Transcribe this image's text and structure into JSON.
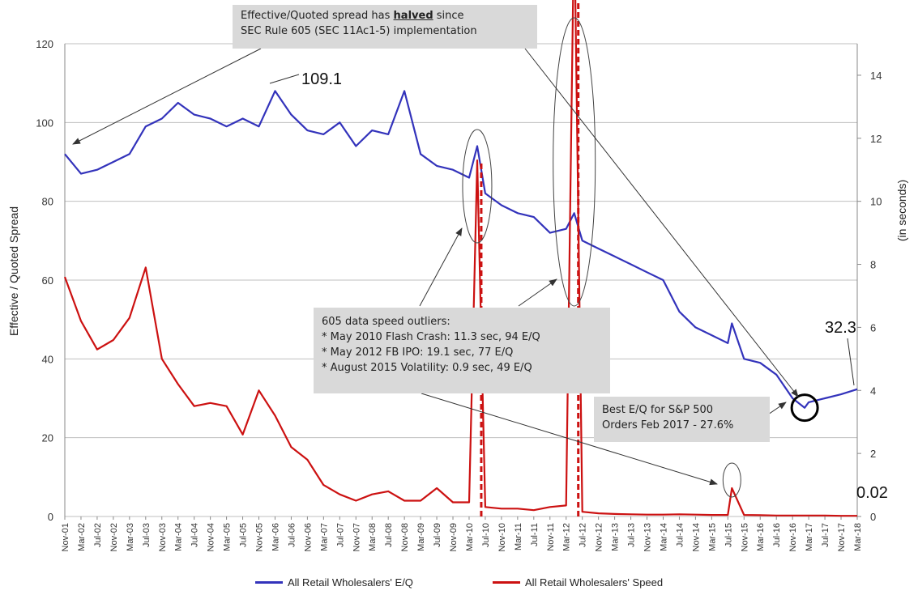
{
  "chart_data": {
    "type": "line",
    "ylabel": "Effective / Quoted Spread",
    "y2label": "(in seconds)",
    "ylim": [
      0,
      120
    ],
    "y2lim": [
      0,
      15
    ],
    "yticks": [
      0,
      20,
      40,
      60,
      80,
      100,
      120
    ],
    "y2ticks": [
      0,
      2,
      4,
      6,
      8,
      10,
      12,
      14
    ],
    "x_tick_labels": [
      "Nov-01",
      "Mar-02",
      "Jul-02",
      "Nov-02",
      "Mar-03",
      "Jul-03",
      "Nov-03",
      "Mar-04",
      "Jul-04",
      "Nov-04",
      "Mar-05",
      "Jul-05",
      "Nov-05",
      "Mar-06",
      "Jul-06",
      "Nov-06",
      "Mar-07",
      "Jul-07",
      "Nov-07",
      "Mar-08",
      "Jul-08",
      "Nov-08",
      "Mar-09",
      "Jul-09",
      "Nov-09",
      "Mar-10",
      "Jul-10",
      "Nov-10",
      "Mar-11",
      "Jul-11",
      "Nov-11",
      "Mar-12",
      "Jul-12",
      "Nov-12",
      "Mar-13",
      "Jul-13",
      "Nov-13",
      "Mar-14",
      "Jul-14",
      "Nov-14",
      "Mar-15",
      "Jul-15",
      "Nov-15",
      "Mar-16",
      "Jul-16",
      "Nov-16",
      "Mar-17",
      "Jul-17",
      "Nov-17",
      "Mar-18"
    ],
    "grid": true,
    "legend_position": "bottom",
    "series": [
      {
        "name": "All Retail Wholesalers' E/Q",
        "axis": "left",
        "color": "#3333bb",
        "x": [
          "Nov-01",
          "Mar-02",
          "Jul-02",
          "Nov-02",
          "Mar-03",
          "Jul-03",
          "Nov-03",
          "Mar-04",
          "Jul-04",
          "Nov-04",
          "Mar-05",
          "Jul-05",
          "Nov-05",
          "Mar-06",
          "Jul-06",
          "Nov-06",
          "Mar-07",
          "Jul-07",
          "Nov-07",
          "Mar-08",
          "Jul-08",
          "Nov-08",
          "Mar-09",
          "Jul-09",
          "Nov-09",
          "Mar-10",
          "May-10",
          "Jul-10",
          "Nov-10",
          "Mar-11",
          "Jul-11",
          "Nov-11",
          "Mar-12",
          "May-12",
          "Jul-12",
          "Nov-12",
          "Mar-13",
          "Jul-13",
          "Nov-13",
          "Mar-14",
          "Jul-14",
          "Nov-14",
          "Mar-15",
          "Jul-15",
          "Aug-15",
          "Nov-15",
          "Mar-16",
          "Jul-16",
          "Nov-16",
          "Feb-17",
          "Mar-17",
          "Jul-17",
          "Nov-17",
          "Mar-18"
        ],
        "values": [
          92,
          87,
          88,
          90,
          92,
          99,
          101,
          105,
          102,
          101,
          99,
          101,
          99,
          108,
          102,
          98,
          97,
          100,
          94,
          98,
          97,
          108,
          92,
          89,
          88,
          86,
          94,
          82,
          79,
          77,
          76,
          72,
          73,
          77,
          70,
          68,
          66,
          64,
          62,
          60,
          52,
          48,
          46,
          44,
          49,
          40,
          39,
          36,
          30,
          27.6,
          29,
          30,
          31,
          32.3
        ]
      },
      {
        "name": "All Retail Wholesalers' Speed",
        "axis": "right",
        "color": "#cc1111",
        "x": [
          "Nov-01",
          "Mar-02",
          "Jul-02",
          "Nov-02",
          "Mar-03",
          "Jul-03",
          "Nov-03",
          "Mar-04",
          "Jul-04",
          "Nov-04",
          "Mar-05",
          "Jul-05",
          "Nov-05",
          "Mar-06",
          "Jul-06",
          "Nov-06",
          "Mar-07",
          "Jul-07",
          "Nov-07",
          "Mar-08",
          "Jul-08",
          "Nov-08",
          "Mar-09",
          "Jul-09",
          "Nov-09",
          "Mar-10",
          "May-10",
          "Jul-10",
          "Nov-10",
          "Mar-11",
          "Jul-11",
          "Nov-11",
          "Mar-12",
          "May-12",
          "Jul-12",
          "Nov-12",
          "Mar-13",
          "Jul-13",
          "Nov-13",
          "Mar-14",
          "Jul-14",
          "Nov-14",
          "Mar-15",
          "Jul-15",
          "Aug-15",
          "Nov-15",
          "Mar-16",
          "Jul-16",
          "Nov-16",
          "Mar-17",
          "Jul-17",
          "Nov-17",
          "Mar-18"
        ],
        "values": [
          7.6,
          6.2,
          5.3,
          5.6,
          6.3,
          7.9,
          5.0,
          4.2,
          3.5,
          3.6,
          3.5,
          2.6,
          4.0,
          3.2,
          2.2,
          1.8,
          1.0,
          0.7,
          0.5,
          0.7,
          0.8,
          0.5,
          0.5,
          0.9,
          0.45,
          0.45,
          11.3,
          0.3,
          0.25,
          0.25,
          0.2,
          0.3,
          0.35,
          19.1,
          0.15,
          0.1,
          0.08,
          0.07,
          0.06,
          0.06,
          0.07,
          0.06,
          0.05,
          0.05,
          0.9,
          0.05,
          0.04,
          0.03,
          0.03,
          0.03,
          0.03,
          0.02,
          0.02
        ]
      }
    ],
    "annotations": {
      "peak_label": "109.1",
      "end_eq_label": "32.3",
      "end_speed_label": "0.02",
      "top_box_line1_pre": "Effective/Quoted spread has ",
      "top_box_bold": "halved",
      "top_box_line1_post": " since",
      "top_box_line2": "SEC Rule  605  (SEC 11Ac1-5)  implementation",
      "mid_box_title": "605  data speed outliers:",
      "mid_box_items": [
        "* May 2010  Flash Crash: 11.3 sec, 94 E/Q",
        "* May 2012  FB IPO: 19.1 sec, 77 E/Q",
        "* August 2015 Volatility: 0.9 sec, 49 E/Q"
      ],
      "best_box_line1": "Best E/Q for S&P 500",
      "best_box_line2": "Orders Feb 2017  - 27.6%"
    }
  }
}
